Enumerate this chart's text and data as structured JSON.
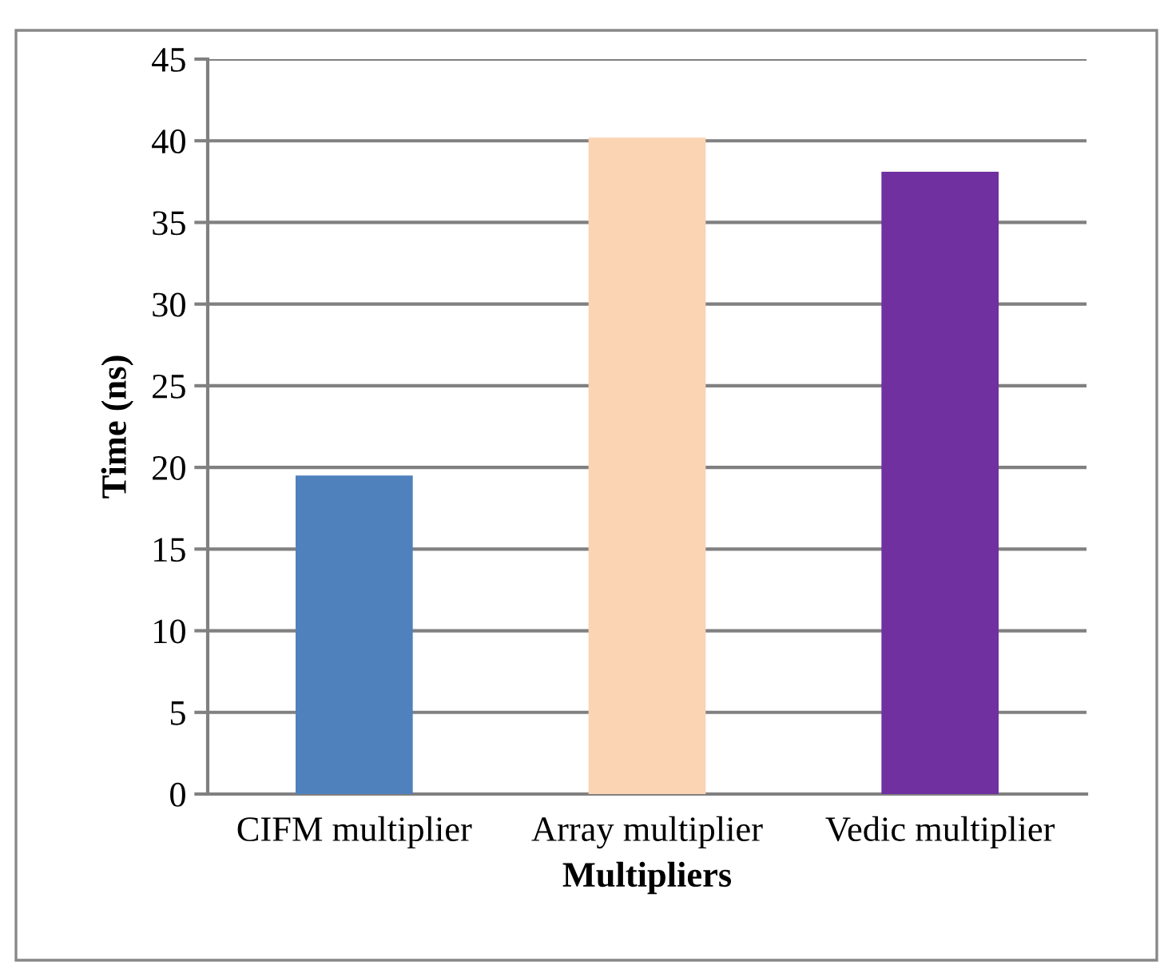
{
  "chart_data": {
    "type": "bar",
    "xlabel": "Multipliers",
    "ylabel": "Time (ns)",
    "categories": [
      "CIFM multiplier",
      "Array multiplier",
      "Vedic multiplier"
    ],
    "values": [
      19.5,
      40.2,
      38.1
    ],
    "colors": [
      "#4f81bd",
      "#fbd4b4",
      "#7030a0"
    ],
    "ylim": [
      0,
      45
    ],
    "yticks": [
      0,
      5,
      10,
      15,
      20,
      25,
      30,
      35,
      40,
      45
    ],
    "grid": "y",
    "legend": false
  }
}
